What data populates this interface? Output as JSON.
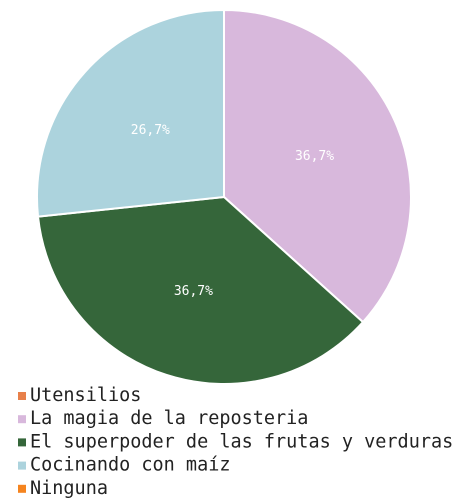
{
  "chart_data": {
    "type": "pie",
    "categories": [
      "Utensilios",
      "La magia de la reposteria",
      "El superpoder de las frutas y verduras",
      "Cocinando con maíz",
      "Ninguna"
    ],
    "values": [
      0,
      36.7,
      36.7,
      26.7,
      0
    ],
    "value_labels": [
      null,
      "36,7%",
      "36,7%",
      "26,7%",
      null
    ],
    "colors": [
      "#e8804a",
      "#d8b8dc",
      "#35663a",
      "#acd3dd",
      "#f5841f"
    ]
  }
}
